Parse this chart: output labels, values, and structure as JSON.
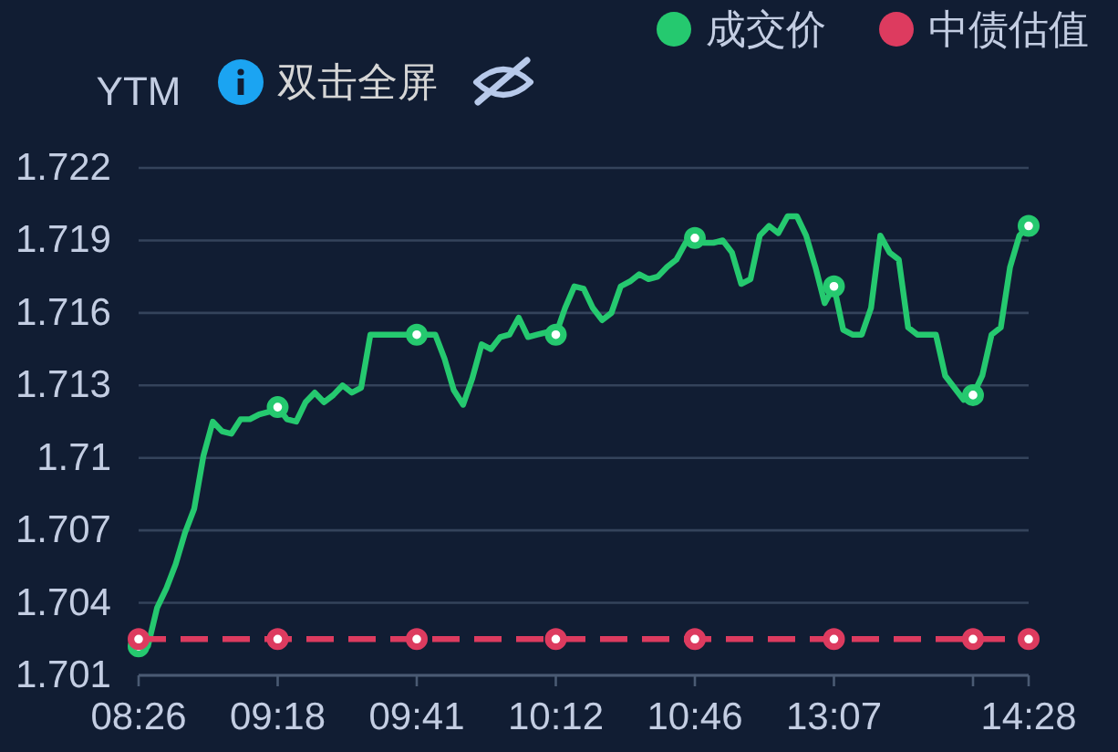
{
  "chart_data": {
    "type": "line",
    "ylabel": "YTM",
    "annotations": [
      "双击全屏"
    ],
    "categories": [
      "08:26",
      null,
      null,
      null,
      null,
      null,
      null,
      null,
      null,
      null,
      null,
      null,
      null,
      null,
      null,
      "09:18",
      null,
      null,
      null,
      null,
      null,
      null,
      null,
      null,
      null,
      null,
      null,
      null,
      null,
      null,
      "09:41",
      null,
      null,
      null,
      null,
      null,
      null,
      null,
      null,
      null,
      null,
      null,
      null,
      null,
      null,
      "10:12",
      null,
      null,
      null,
      null,
      null,
      null,
      null,
      null,
      null,
      null,
      null,
      null,
      null,
      null,
      "10:46",
      null,
      null,
      null,
      null,
      null,
      null,
      null,
      null,
      null,
      null,
      null,
      null,
      null,
      null,
      "13:07",
      null,
      null,
      null,
      null,
      null,
      null,
      null,
      null,
      null,
      null,
      null,
      null,
      null,
      null,
      null,
      null,
      null,
      null,
      null,
      null,
      "14:28"
    ],
    "series": [
      {
        "name": "成交价",
        "color": "#25c96f",
        "values": [
          1.7022,
          1.7022,
          1.7038,
          1.7046,
          1.7056,
          1.7069,
          1.7079,
          1.7101,
          1.7115,
          1.7111,
          1.711,
          1.7116,
          1.7116,
          1.7118,
          1.7119,
          1.7121,
          1.7116,
          1.7115,
          1.7123,
          1.7127,
          1.7123,
          1.7126,
          1.713,
          1.7127,
          1.7129,
          1.7151,
          1.7151,
          1.7151,
          1.7151,
          1.7151,
          1.7151,
          1.7151,
          1.7151,
          1.7141,
          1.7128,
          1.7122,
          1.7133,
          1.7147,
          1.7145,
          1.715,
          1.7151,
          1.7158,
          1.715,
          1.7151,
          1.7152,
          1.7151,
          1.7162,
          1.7171,
          1.717,
          1.7162,
          1.7157,
          1.716,
          1.7171,
          1.7173,
          1.7176,
          1.7174,
          1.7175,
          1.7179,
          1.7182,
          1.7189,
          1.7191,
          1.7189,
          1.7189,
          1.719,
          1.7185,
          1.7172,
          1.7174,
          1.7192,
          1.7196,
          1.7193,
          1.72,
          1.72,
          1.7192,
          1.7179,
          1.7164,
          1.7171,
          1.7153,
          1.7151,
          1.7151,
          1.7162,
          1.7192,
          1.7185,
          1.7182,
          1.7154,
          1.7151,
          1.7151,
          1.7151,
          1.7134,
          1.7129,
          1.7124,
          1.7126,
          1.7134,
          1.7151,
          1.7154,
          1.7179,
          1.7192,
          1.7196
        ]
      },
      {
        "type": "scatter",
        "color": "#25c96f",
        "marker": "circle",
        "values": [
          1.7022,
          null,
          null,
          null,
          null,
          null,
          null,
          null,
          null,
          null,
          null,
          null,
          null,
          null,
          null,
          1.7121,
          null,
          null,
          null,
          null,
          null,
          null,
          null,
          null,
          null,
          null,
          null,
          null,
          null,
          null,
          1.7151,
          null,
          null,
          null,
          null,
          null,
          null,
          null,
          null,
          null,
          null,
          null,
          null,
          null,
          null,
          1.7151,
          null,
          null,
          null,
          null,
          null,
          null,
          null,
          null,
          null,
          null,
          null,
          null,
          null,
          null,
          1.7191,
          null,
          null,
          null,
          null,
          null,
          null,
          null,
          null,
          null,
          null,
          null,
          null,
          null,
          null,
          1.7171,
          null,
          null,
          null,
          null,
          null,
          null,
          null,
          null,
          null,
          null,
          null,
          null,
          null,
          null,
          1.7126,
          null,
          null,
          null,
          null,
          null,
          1.7196
        ]
      },
      {
        "name": "中债估值",
        "color": "#dd3b5f",
        "line_style": "dashed",
        "values": [
          1.7025,
          1.7025,
          1.7025,
          1.7025,
          1.7025,
          1.7025,
          1.7025,
          1.7025,
          1.7025,
          1.7025,
          1.7025,
          1.7025,
          1.7025,
          1.7025,
          1.7025,
          1.7025,
          1.7025,
          1.7025,
          1.7025,
          1.7025,
          1.7025,
          1.7025,
          1.7025,
          1.7025,
          1.7025,
          1.7025,
          1.7025,
          1.7025,
          1.7025,
          1.7025,
          1.7025,
          1.7025,
          1.7025,
          1.7025,
          1.7025,
          1.7025,
          1.7025,
          1.7025,
          1.7025,
          1.7025,
          1.7025,
          1.7025,
          1.7025,
          1.7025,
          1.7025,
          1.7025,
          1.7025,
          1.7025,
          1.7025,
          1.7025,
          1.7025,
          1.7025,
          1.7025,
          1.7025,
          1.7025,
          1.7025,
          1.7025,
          1.7025,
          1.7025,
          1.7025,
          1.7025,
          1.7025,
          1.7025,
          1.7025,
          1.7025,
          1.7025,
          1.7025,
          1.7025,
          1.7025,
          1.7025,
          1.7025,
          1.7025,
          1.7025,
          1.7025,
          1.7025,
          1.7025,
          1.7025,
          1.7025,
          1.7025,
          1.7025,
          1.7025,
          1.7025,
          1.7025,
          1.7025,
          1.7025,
          1.7025,
          1.7025,
          1.7025,
          1.7025,
          1.7025,
          1.7025,
          1.7025,
          1.7025,
          1.7025,
          1.7025,
          1.7025,
          1.7025
        ]
      },
      {
        "type": "scatter",
        "color": "#dd3b5f",
        "marker": "circle",
        "values": [
          1.7025,
          null,
          null,
          null,
          null,
          null,
          null,
          null,
          null,
          null,
          null,
          null,
          null,
          null,
          null,
          1.7025,
          null,
          null,
          null,
          null,
          null,
          null,
          null,
          null,
          null,
          null,
          null,
          null,
          null,
          null,
          1.7025,
          null,
          null,
          null,
          null,
          null,
          null,
          null,
          null,
          null,
          null,
          null,
          null,
          null,
          null,
          1.7025,
          null,
          null,
          null,
          null,
          null,
          null,
          null,
          null,
          null,
          null,
          null,
          null,
          null,
          null,
          1.7025,
          null,
          null,
          null,
          null,
          null,
          null,
          null,
          null,
          null,
          null,
          null,
          null,
          null,
          null,
          1.7025,
          null,
          null,
          null,
          null,
          null,
          null,
          null,
          null,
          null,
          null,
          null,
          null,
          null,
          null,
          1.7025,
          null,
          null,
          null,
          null,
          null,
          1.7025
        ]
      }
    ],
    "ylim": [
      1.701,
      1.722
    ],
    "yticks": [
      1.701,
      1.704,
      1.707,
      1.71,
      1.713,
      1.716,
      1.719,
      1.722
    ],
    "grid": "y",
    "legend": "top right",
    "line_style": "solid"
  }
}
